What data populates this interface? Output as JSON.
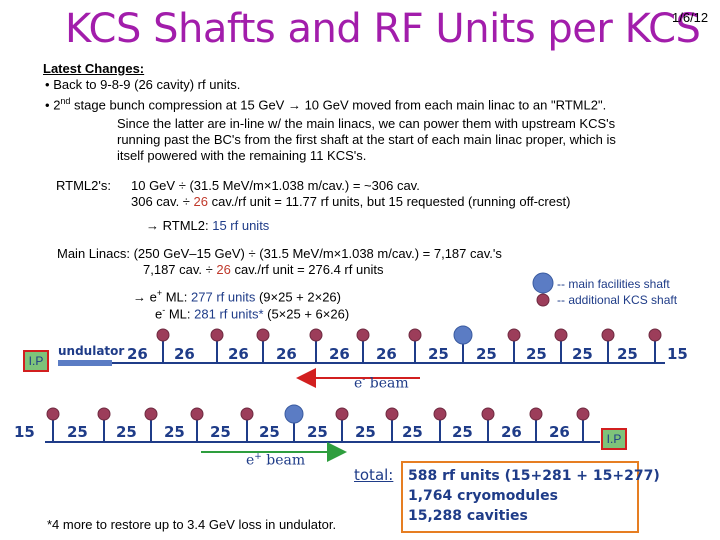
{
  "slide": {
    "title": "KCS Shafts and RF Units per KCS",
    "date": "1/6/12"
  },
  "changes": {
    "heading": "Latest Changes:",
    "bullet1": "Back to 9-8-9 (26 cavity) rf units.",
    "bullet2_pre": "2",
    "bullet2_sup": "nd",
    "bullet2_post": " stage bunch compression  at 15 GeV  →  10 GeV moved from each main linac to an \"RTML2\".",
    "para": [
      "Since the latter are in-line w/ the main linacs, we can power them with upstream KCS's",
      "running past the BC's from the first shaft at the start of each main linac proper, which is",
      "itself powered with the remaining 11 KCS's."
    ]
  },
  "rtml": {
    "label": "RTML2's:",
    "line1": "10 GeV ÷ (31.5 MeV/m×1.038 m/cav.) = ~306 cav.",
    "line2_a": "306 cav. ÷  ",
    "line2_b": "26",
    "line2_c": " cav./rf unit = 11.77 rf units, but 15 requested (running off-crest)",
    "result_a": "→ RTML2:  ",
    "result_b": "15 rf units"
  },
  "linacs": {
    "line1": "Main Linacs:  (250 GeV–15 GeV) ÷ (31.5 MeV/m×1.038 m/cav.) = 7,187 cav.'s",
    "line2_a": "7,187 cav. ÷  ",
    "line2_b": "26",
    "line2_c": " cav./rf unit = 276.4 rf units",
    "pos_a": "→  e",
    "pos_sup": "+",
    "pos_b": " ML:  ",
    "pos_c": "277 rf units",
    "pos_d": "  (9×25 + 2×26)",
    "neg_a": "e",
    "neg_sup": "-",
    "neg_b": " ML:  ",
    "neg_c": "281 rf units*",
    "neg_d": "  (5×25 + 6×26)"
  },
  "legend": {
    "main": "-- main facilities shaft",
    "additional": "-- additional KCS shaft",
    "main_color": "#5b7cc4",
    "additional_color": "#9c3d5a"
  },
  "diagram": {
    "ip_label": "I.P",
    "undulator": "undulator",
    "top_values": [
      "26",
      "26",
      "26",
      "26",
      "26",
      "26",
      "25",
      "25",
      "25",
      "25",
      "25",
      "15"
    ],
    "bottom_values": [
      "15",
      "25",
      "25",
      "25",
      "25",
      "25",
      "25",
      "25",
      "25",
      "25",
      "26",
      "26"
    ],
    "eminus_a": "e",
    "eminus_sup": "-",
    "eminus_b": " beam",
    "eplus_a": "e",
    "eplus_sup": "+",
    "eplus_b": " beam"
  },
  "summary": {
    "total_label": "total:",
    "line1": "588 rf units (15+281 + 15+277)",
    "line2": "1,764 cryomodules",
    "line3": "15,288 cavities",
    "footnote": "*4 more to restore up to 3.4 GeV loss in undulator."
  }
}
